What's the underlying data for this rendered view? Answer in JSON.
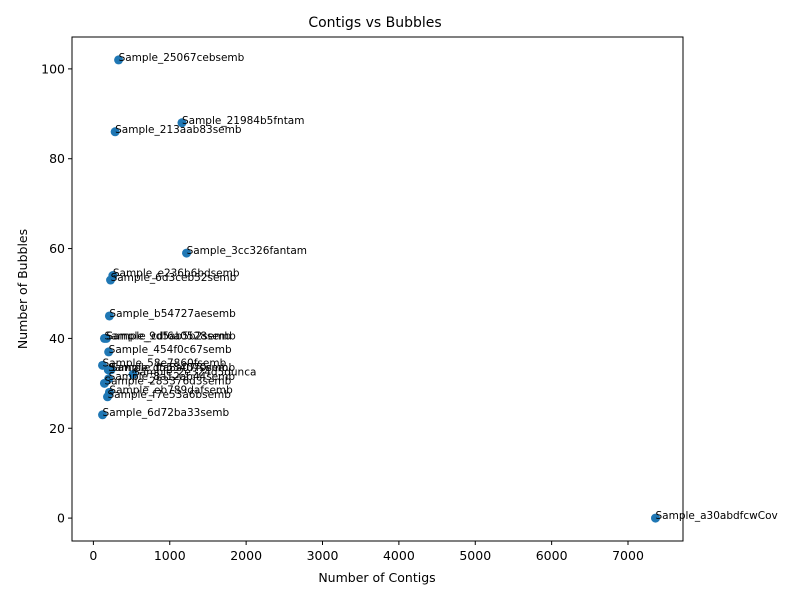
{
  "chart_data": {
    "type": "scatter",
    "title": "Contigs vs Bubbles",
    "xlabel": "Number of Contigs",
    "ylabel": "Number of Bubbles",
    "xlim": [
      -280,
      7720
    ],
    "ylim": [
      -5.1,
      107.1
    ],
    "xticks": [
      0,
      1000,
      2000,
      3000,
      4000,
      5000,
      6000,
      7000
    ],
    "yticks": [
      0,
      20,
      40,
      60,
      80,
      100
    ],
    "grid": false,
    "color": "#1f77b4",
    "points": [
      {
        "label": "Sample_25067cebsemb",
        "x": 330,
        "y": 102
      },
      {
        "label": "Sample_21984b5fntam",
        "x": 1160,
        "y": 88
      },
      {
        "label": "Sample_213aab83semb",
        "x": 285,
        "y": 86
      },
      {
        "label": "Sample_3cc326fantam",
        "x": 1220,
        "y": 59
      },
      {
        "label": "Sample_e236b6bdsemb",
        "x": 255,
        "y": 54
      },
      {
        "label": "Sample_6d3ceb52semb",
        "x": 225,
        "y": 53
      },
      {
        "label": "Sample_b54727aesemb",
        "x": 210,
        "y": 45
      },
      {
        "label": "Sample_9d5ab5b2semb",
        "x": 145,
        "y": 40
      },
      {
        "label": "Sample_cdf6a0528semb",
        "x": 170,
        "y": 40
      },
      {
        "label": "Sample_454f0c67semb",
        "x": 200,
        "y": 37
      },
      {
        "label": "Sample_58e7860fsemb",
        "x": 120,
        "y": 34
      },
      {
        "label": "Sample_d5534070semb",
        "x": 195,
        "y": 33
      },
      {
        "label": "Sample_ffa8a07fsemb",
        "x": 230,
        "y": 33
      },
      {
        "label": "Sample_2e324d5dunca",
        "x": 520,
        "y": 32
      },
      {
        "label": "Sample_8a12ab44semb",
        "x": 200,
        "y": 31
      },
      {
        "label": "Sample_283376d3semb",
        "x": 145,
        "y": 30
      },
      {
        "label": "Sample_eb789dafsemb",
        "x": 210,
        "y": 28
      },
      {
        "label": "Sample_f7e53a6bsemb",
        "x": 185,
        "y": 27
      },
      {
        "label": "Sample_6d72ba33semb",
        "x": 120,
        "y": 23
      },
      {
        "label": "Sample_a30abdfcwCov",
        "x": 7360,
        "y": 0
      }
    ]
  }
}
